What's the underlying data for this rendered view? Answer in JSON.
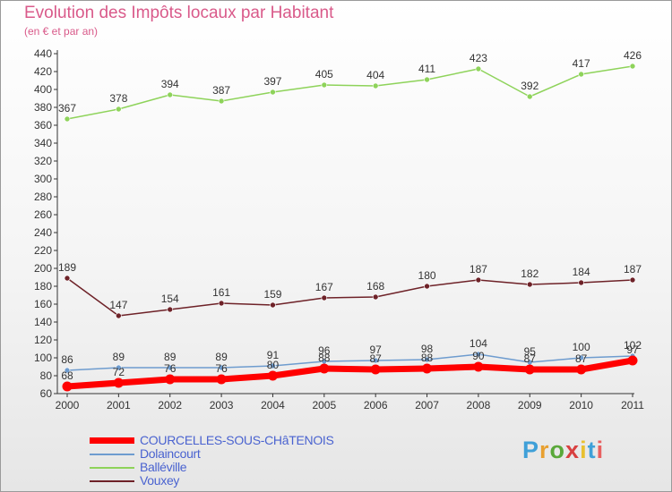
{
  "header": {
    "title": "Evolution des Impôts locaux par Habitant",
    "subtitle": "(en € et par an)"
  },
  "logo": {
    "text": "Proxiti",
    "colors": [
      "#3fa0d8",
      "#e8a030",
      "#5aa83a",
      "#d84040",
      "#e8c030",
      "#3fa0d8",
      "#e86060"
    ]
  },
  "chart_data": {
    "type": "line",
    "x": [
      "2000",
      "2001",
      "2002",
      "2003",
      "2004",
      "2005",
      "2006",
      "2007",
      "2008",
      "2009",
      "2010",
      "2011"
    ],
    "ylim": [
      60,
      440
    ],
    "yticks": [
      60,
      80,
      100,
      120,
      140,
      160,
      180,
      200,
      220,
      240,
      260,
      280,
      300,
      320,
      340,
      360,
      380,
      400,
      420,
      440
    ],
    "grid": false,
    "legend_position": "bottom-left",
    "series": [
      {
        "name": "COURCELLES-SOUS-CHâTENOIS",
        "color": "#ff0000",
        "values": [
          68,
          72,
          76,
          76,
          80,
          88,
          87,
          88,
          90,
          87,
          87,
          97
        ]
      },
      {
        "name": "Dolaincourt",
        "color": "#6e9ccf",
        "values": [
          86,
          89,
          89,
          89,
          91,
          96,
          97,
          98,
          104,
          95,
          100,
          102
        ]
      },
      {
        "name": "Balléville",
        "color": "#8ed35a",
        "values": [
          367,
          378,
          394,
          387,
          397,
          405,
          404,
          411,
          423,
          392,
          417,
          426
        ]
      },
      {
        "name": "Vouxey",
        "color": "#6e2228",
        "values": [
          189,
          147,
          154,
          161,
          159,
          167,
          168,
          180,
          187,
          182,
          184,
          187
        ]
      }
    ]
  }
}
